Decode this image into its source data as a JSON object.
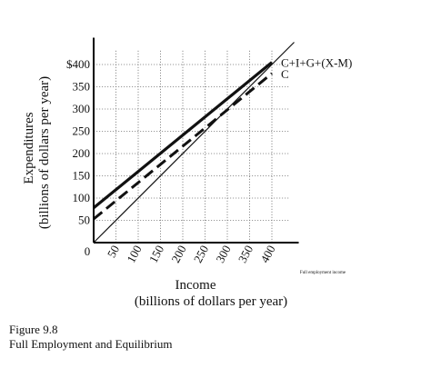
{
  "chart_data": {
    "type": "line",
    "xlabel_line1": "Income",
    "xlabel_line2": "(billions of dollars per year)",
    "ylabel_line1": "Expenditures",
    "ylabel_line2": "(billions of dollars per year)",
    "xlim": [
      0,
      450
    ],
    "ylim": [
      0,
      450
    ],
    "x_ticks": [
      "0",
      "50",
      "100",
      "150",
      "200",
      "250",
      "300",
      "350",
      "400"
    ],
    "y_ticks": [
      "$400",
      "350",
      "300",
      "250",
      "200",
      "150",
      "100",
      "50"
    ],
    "x_tick_values": [
      0,
      50,
      100,
      150,
      200,
      250,
      300,
      350,
      400
    ],
    "y_tick_values": [
      400,
      350,
      300,
      250,
      200,
      150,
      100,
      50
    ],
    "x_annotation": "Full employment income",
    "grid": true,
    "series": [
      {
        "name": "C+I+G+(X-M)",
        "style": "solid-thick",
        "x": [
          0,
          400
        ],
        "y": [
          78,
          405
        ]
      },
      {
        "name": "C",
        "style": "dashed-thick",
        "x": [
          0,
          400
        ],
        "y": [
          53,
          380
        ]
      },
      {
        "style": "solid-thin",
        "x": [
          0,
          450
        ],
        "y": [
          0,
          450
        ]
      }
    ]
  },
  "caption": {
    "figure_number": "Figure 9.8",
    "title": "Full Employment and Equilibrium"
  }
}
